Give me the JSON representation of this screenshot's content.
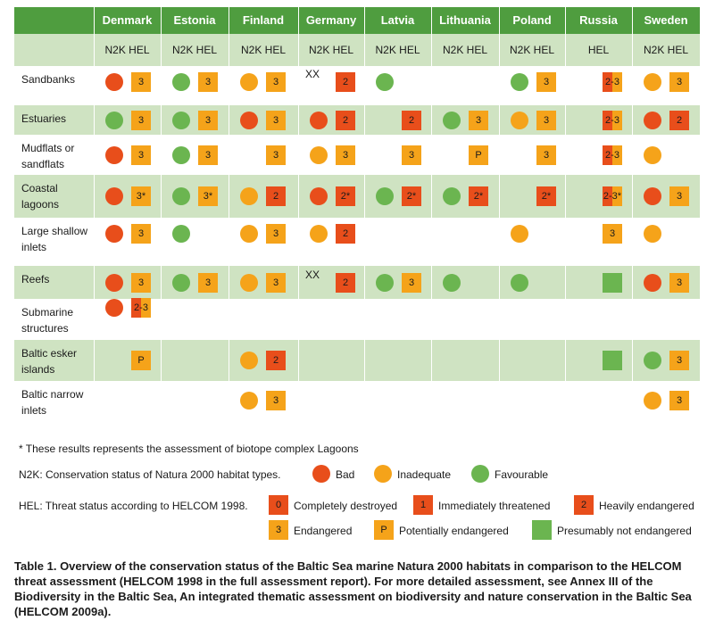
{
  "colors": {
    "bad": "#e84e1b",
    "inadequate": "#f5a31a",
    "favourable": "#6bb550",
    "destroyed": "#e84e1b",
    "immediately": "#e84e1b",
    "heavily": "#e84e1b",
    "endangered": "#f5a31a",
    "potentially": "#f5a31a",
    "not_endangered": "#6bb550",
    "header": "#4f9d3f",
    "shade": "#cfe3c2"
  },
  "countries": [
    "Denmark",
    "Estonia",
    "Finland",
    "Germany",
    "Latvia",
    "Lithuania",
    "Poland",
    "Russia",
    "Sweden"
  ],
  "subheaders": [
    "N2K HEL",
    "N2K HEL",
    "N2K HEL",
    "N2K HEL",
    "N2K HEL",
    "N2K HEL",
    "N2K HEL",
    "HEL",
    "N2K HEL"
  ],
  "rows": [
    {
      "label": "Sandbanks",
      "cells": [
        [
          "bad",
          "3"
        ],
        [
          "fav",
          "3"
        ],
        [
          "ina",
          "3"
        ],
        [
          "XX",
          "2"
        ],
        [
          "fav",
          ""
        ],
        [
          "",
          ""
        ],
        [
          "fav",
          "3"
        ],
        [
          "",
          "2-3"
        ],
        [
          "ina",
          "3"
        ]
      ]
    },
    {
      "label": "Estuaries",
      "cells": [
        [
          "fav",
          "3"
        ],
        [
          "fav",
          "3"
        ],
        [
          "bad",
          "3"
        ],
        [
          "bad",
          "2"
        ],
        [
          "",
          "2"
        ],
        [
          "fav",
          "3"
        ],
        [
          "ina",
          "3"
        ],
        [
          "",
          "2-3"
        ],
        [
          "bad",
          "2"
        ]
      ]
    },
    {
      "label": "Mudflats or sandflats",
      "cells": [
        [
          "bad",
          "3"
        ],
        [
          "fav",
          "3"
        ],
        [
          "",
          "3"
        ],
        [
          "ina",
          "3"
        ],
        [
          "",
          "3"
        ],
        [
          "",
          "P"
        ],
        [
          "",
          "3"
        ],
        [
          "",
          "2-3"
        ],
        [
          "ina",
          ""
        ]
      ]
    },
    {
      "label": "Coastal lagoons",
      "cells": [
        [
          "bad",
          "3*"
        ],
        [
          "fav",
          "3*"
        ],
        [
          "ina",
          "2"
        ],
        [
          "bad",
          "2*"
        ],
        [
          "fav",
          "2*"
        ],
        [
          "fav",
          "2*"
        ],
        [
          "",
          "2*"
        ],
        [
          "",
          "2-3*"
        ],
        [
          "bad",
          "3"
        ]
      ]
    },
    {
      "label": "Large shallow inlets",
      "cells": [
        [
          "bad",
          "3"
        ],
        [
          "fav",
          ""
        ],
        [
          "ina",
          "3"
        ],
        [
          "ina",
          "2"
        ],
        [
          "",
          ""
        ],
        [
          "",
          ""
        ],
        [
          "ina",
          ""
        ],
        [
          "",
          "3"
        ],
        [
          "ina",
          ""
        ]
      ]
    },
    {
      "label": "Reefs",
      "cells": [
        [
          "bad",
          "3"
        ],
        [
          "fav",
          "3"
        ],
        [
          "ina",
          "3"
        ],
        [
          "XX",
          "2"
        ],
        [
          "fav",
          "3"
        ],
        [
          "fav",
          ""
        ],
        [
          "fav",
          ""
        ],
        [
          "",
          "G"
        ],
        [
          "bad",
          "3"
        ]
      ]
    },
    {
      "label": "Submarine structures",
      "cells": [
        [
          "bad",
          "2-3"
        ],
        [
          "",
          ""
        ],
        [
          "",
          ""
        ],
        [
          "",
          ""
        ],
        [
          "",
          ""
        ],
        [
          "",
          ""
        ],
        [
          "",
          ""
        ],
        [
          "",
          ""
        ],
        [
          "",
          ""
        ]
      ]
    },
    {
      "label": "Baltic esker islands",
      "cells": [
        [
          "",
          "P"
        ],
        [
          "",
          ""
        ],
        [
          "ina",
          "2"
        ],
        [
          "",
          ""
        ],
        [
          "",
          ""
        ],
        [
          "",
          ""
        ],
        [
          "",
          ""
        ],
        [
          "",
          "G"
        ],
        [
          "fav",
          "3"
        ]
      ]
    },
    {
      "label": "Baltic narrow inlets",
      "cells": [
        [
          "",
          ""
        ],
        [
          "",
          ""
        ],
        [
          "ina",
          "3"
        ],
        [
          "",
          ""
        ],
        [
          "",
          ""
        ],
        [
          "",
          ""
        ],
        [
          "",
          ""
        ],
        [
          "",
          ""
        ],
        [
          "ina",
          "3"
        ]
      ]
    }
  ],
  "notes": {
    "footnote": "* These results represents the assessment of biotope complex Lagoons",
    "n2k_title": "N2K: Conservation status of Natura 2000 habitat types.",
    "bad": "Bad",
    "inadequate": "Inadequate",
    "favourable": "Favourable",
    "hel_title": "HEL: Threat status according to HELCOM 1998.",
    "s0": "0",
    "destroyed": "Completely destroyed",
    "s1": "1",
    "immediately": "Immediately threatened",
    "s2": "2",
    "heavily": "Heavily endangered",
    "s3": "3",
    "endangered": "Endangered",
    "sP": "P",
    "potentially": "Potentially endangered",
    "not_endangered": "Presumably not endangered"
  },
  "caption": {
    "lead": "Table 1.",
    "text": " Overview of the conservation status of the Baltic Sea marine Natura 2000 habitats in comparison to the HELCOM threat assessment (HELCOM 1998 in the full assessment report). For more detailed assessment, see Annex III of the Biodiversity in the Baltic Sea, An integrated thematic assessment on biodiversity and nature conservation in the Baltic Sea (HELCOM 2009a)."
  }
}
